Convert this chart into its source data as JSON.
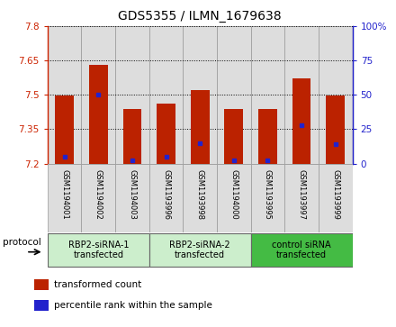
{
  "title": "GDS5355 / ILMN_1679638",
  "samples": [
    "GSM1194001",
    "GSM1194002",
    "GSM1194003",
    "GSM1193996",
    "GSM1193998",
    "GSM1194000",
    "GSM1193995",
    "GSM1193997",
    "GSM1193999"
  ],
  "transformed_counts": [
    7.497,
    7.63,
    7.44,
    7.46,
    7.522,
    7.438,
    7.438,
    7.572,
    7.498
  ],
  "percentile_ranks": [
    5,
    50,
    2,
    5,
    15,
    2,
    2,
    28,
    14
  ],
  "ylim_left": [
    7.2,
    7.8
  ],
  "ylim_right": [
    0,
    100
  ],
  "yticks_left": [
    7.2,
    7.35,
    7.5,
    7.65,
    7.8
  ],
  "yticks_right": [
    0,
    25,
    50,
    75,
    100
  ],
  "ytick_labels_left": [
    "7.2",
    "7.35",
    "7.5",
    "7.65",
    "7.8"
  ],
  "ytick_labels_right": [
    "0",
    "25",
    "50",
    "75",
    "100%"
  ],
  "bar_color": "#bb2200",
  "marker_color": "#2222cc",
  "groups": [
    {
      "label": "RBP2-siRNA-1\ntransfected",
      "indices": [
        0,
        1,
        2
      ],
      "color": "#cceecc"
    },
    {
      "label": "RBP2-siRNA-2\ntransfected",
      "indices": [
        3,
        4,
        5
      ],
      "color": "#cceecc"
    },
    {
      "label": "control siRNA\ntransfected",
      "indices": [
        6,
        7,
        8
      ],
      "color": "#44bb44"
    }
  ],
  "protocol_label": "protocol",
  "legend_items": [
    {
      "color": "#bb2200",
      "label": "transformed count"
    },
    {
      "color": "#2222cc",
      "label": "percentile rank within the sample"
    }
  ],
  "bar_width": 0.55,
  "base_value": 7.2,
  "col_bg": "#dddddd"
}
